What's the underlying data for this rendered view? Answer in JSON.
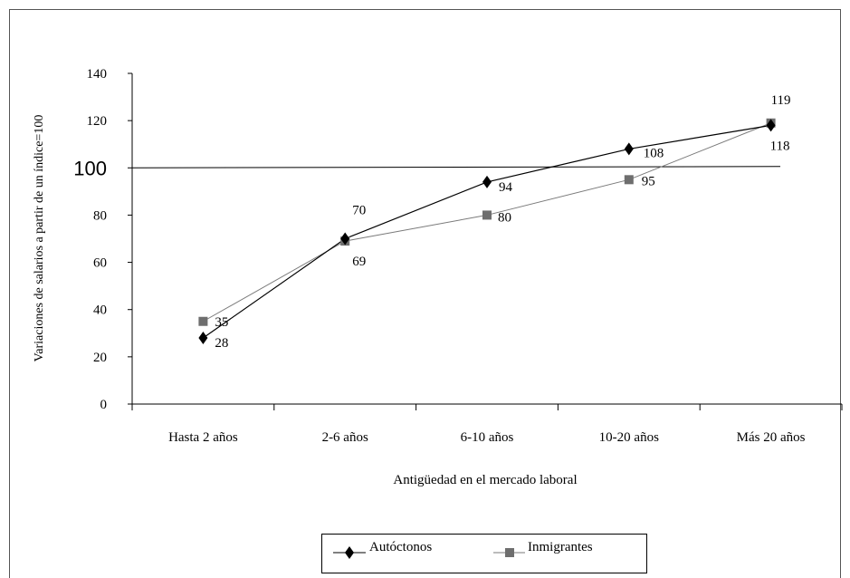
{
  "chart_data": {
    "type": "line",
    "title": "",
    "xlabel": "Antigüedad en el mercado laboral",
    "ylabel": "Variaciones de salarios a partir de un índice=100",
    "categories": [
      "Hasta 2 años",
      "2-6 años",
      "6-10 años",
      "10-20 años",
      "Más 20 años"
    ],
    "ylim": [
      0,
      140
    ],
    "yticks": [
      "0",
      "20",
      "40",
      "60",
      "80",
      "100",
      "120",
      "140"
    ],
    "grid": false,
    "legend_position": "bottom-center",
    "reference_line": {
      "value": 100,
      "label": "100"
    },
    "series": [
      {
        "name": "Autóctonos",
        "marker": "diamond",
        "color": "#000000",
        "values": [
          28,
          70,
          94,
          108,
          118
        ],
        "labels": [
          "28",
          "70",
          "94",
          "108",
          "118"
        ]
      },
      {
        "name": "Inmigrantes",
        "marker": "square",
        "color": "#707070",
        "values": [
          35,
          69,
          80,
          95,
          119
        ],
        "labels": [
          "35",
          "69",
          "80",
          "95",
          "119"
        ]
      }
    ]
  }
}
